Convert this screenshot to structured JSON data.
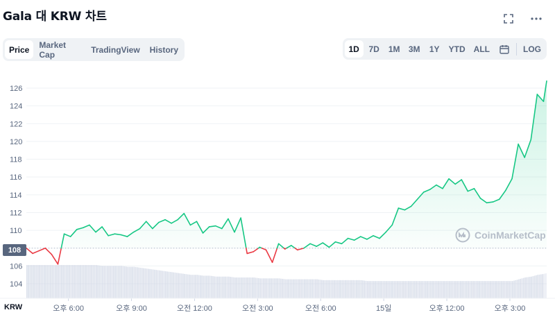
{
  "title": "Gala 대 KRW 차트",
  "icons": {
    "expand": "expand-icon",
    "more": "more-icon",
    "calendar": "calendar-icon",
    "watermark": "coinmarketcap-logo-icon"
  },
  "tabs": [
    {
      "label": "Price",
      "active": true
    },
    {
      "label": "Market Cap",
      "active": false
    },
    {
      "label": "TradingView",
      "active": false
    },
    {
      "label": "History",
      "active": false
    }
  ],
  "ranges": [
    {
      "label": "1D",
      "active": true
    },
    {
      "label": "7D",
      "active": false
    },
    {
      "label": "1M",
      "active": false
    },
    {
      "label": "3M",
      "active": false
    },
    {
      "label": "1Y",
      "active": false
    },
    {
      "label": "YTD",
      "active": false
    },
    {
      "label": "ALL",
      "active": false
    }
  ],
  "log_label": "LOG",
  "currency_label": "KRW",
  "reference_badge": "108",
  "watermark_text": "CoinMarketCap",
  "colors": {
    "up": "#16c784",
    "down": "#ea3943",
    "grid": "#eff2f5",
    "volume": "#cfd6e4",
    "text": "#58667e",
    "dashed": "#a6b0c3"
  },
  "chart_data": {
    "type": "line",
    "reference_value": 108,
    "ylim": [
      103,
      127
    ],
    "yticks": [
      104,
      106,
      108,
      110,
      112,
      114,
      116,
      118,
      120,
      122,
      124,
      126
    ],
    "xticks": [
      "오후 6:00",
      "오후 9:00",
      "오전 12:00",
      "오전 3:00",
      "오전 6:00",
      "15일",
      "오후 12:00",
      "오후 3:00"
    ],
    "xtick_hours": [
      2,
      5,
      8,
      11,
      14,
      17,
      20,
      23
    ],
    "x_hours": [
      0,
      0.3,
      0.6,
      0.9,
      1.2,
      1.5,
      1.8,
      2.1,
      2.4,
      2.7,
      3,
      3.3,
      3.6,
      3.9,
      4.2,
      4.5,
      4.8,
      5.1,
      5.4,
      5.7,
      6,
      6.3,
      6.6,
      6.9,
      7.2,
      7.5,
      7.8,
      8.1,
      8.4,
      8.7,
      9,
      9.3,
      9.6,
      9.9,
      10.2,
      10.5,
      10.8,
      11.1,
      11.4,
      11.7,
      12,
      12.3,
      12.6,
      12.9,
      13.2,
      13.5,
      13.8,
      14.1,
      14.4,
      14.7,
      15,
      15.3,
      15.6,
      15.9,
      16.2,
      16.5,
      16.8,
      17.1,
      17.4,
      17.7,
      18,
      18.3,
      18.6,
      18.9,
      19.2,
      19.5,
      19.8,
      20.1,
      20.4,
      20.7,
      21,
      21.3,
      21.6,
      21.9,
      22.2,
      22.5,
      22.8,
      23.1,
      23.4,
      23.7,
      24,
      24.3,
      24.6,
      24.75
    ],
    "price": [
      108.0,
      107.4,
      107.7,
      108.0,
      107.3,
      106.2,
      109.6,
      109.3,
      110.1,
      110.3,
      110.6,
      109.8,
      110.4,
      109.4,
      109.6,
      109.5,
      109.3,
      109.8,
      110.2,
      111.0,
      110.2,
      110.9,
      111.2,
      110.8,
      111.2,
      111.9,
      110.6,
      111.0,
      109.7,
      110.4,
      110.5,
      110.2,
      111.3,
      109.8,
      111.4,
      107.4,
      107.6,
      108.1,
      107.8,
      106.4,
      108.5,
      107.9,
      108.3,
      107.8,
      108.0,
      108.5,
      108.2,
      108.6,
      108.1,
      108.7,
      108.5,
      109.1,
      108.9,
      109.3,
      109.0,
      109.4,
      109.1,
      109.8,
      110.6,
      112.5,
      112.3,
      112.7,
      113.5,
      114.3,
      114.6,
      115.1,
      114.7,
      115.8,
      115.2,
      115.7,
      114.4,
      114.7,
      113.6,
      113.1,
      113.2,
      113.5,
      114.5,
      115.8,
      119.7,
      118.2,
      120.2,
      125.3,
      124.5,
      126.8
    ],
    "volume": [
      106.1,
      106.1,
      106.1,
      106.1,
      106.1,
      106.1,
      106.1,
      106.1,
      106.1,
      106.1,
      106.1,
      106.1,
      106.0,
      106.0,
      106.0,
      106.0,
      105.9,
      105.9,
      105.8,
      105.7,
      105.6,
      105.5,
      105.4,
      105.3,
      105.2,
      105.1,
      105.0,
      105.0,
      104.9,
      104.9,
      104.8,
      104.8,
      104.8,
      104.7,
      104.7,
      104.7,
      104.7,
      104.6,
      104.6,
      104.6,
      104.6,
      104.5,
      104.5,
      104.5,
      104.5,
      104.5,
      104.5,
      104.4,
      104.4,
      104.4,
      104.4,
      104.4,
      104.4,
      104.4,
      104.3,
      104.3,
      104.3,
      104.3,
      104.3,
      104.3,
      104.3,
      104.3,
      104.3,
      104.3,
      104.3,
      104.3,
      104.3,
      104.3,
      104.3,
      104.3,
      104.3,
      104.3,
      104.3,
      104.3,
      104.3,
      104.3,
      104.3,
      104.3,
      104.5,
      104.7,
      104.8,
      105.0,
      105.1,
      105.2
    ],
    "xlabel": "",
    "ylabel": ""
  }
}
